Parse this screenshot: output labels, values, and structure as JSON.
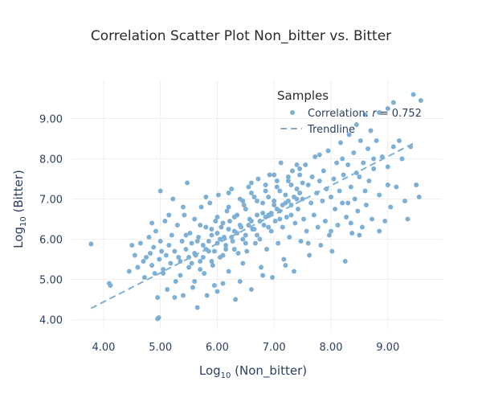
{
  "chart_data": {
    "type": "scatter",
    "title": "Correlation Scatter Plot Non_bitter vs. Bitter",
    "xlabel": "Log10 (Non_bitter)",
    "ylabel": "Log10 (Bitter)",
    "xlabel_parts": {
      "pre": "Log",
      "sub": "10",
      "post": " (Non_bitter)"
    },
    "ylabel_parts": {
      "pre": "Log",
      "sub": "10",
      "post": " (Bitter)"
    },
    "xlim": [
      3.45,
      9.95
    ],
    "ylim": [
      3.75,
      9.95
    ],
    "x_ticks": [
      4,
      5,
      6,
      7,
      8,
      9
    ],
    "y_ticks": [
      4,
      5,
      6,
      7,
      8,
      9
    ],
    "x_tick_labels": [
      "4.00",
      "5.00",
      "6.00",
      "7.00",
      "8.00",
      "9.00"
    ],
    "y_tick_labels": [
      "4.00",
      "5.00",
      "6.00",
      "7.00",
      "8.00",
      "9.00"
    ],
    "grid": true,
    "legend": {
      "title": "Samples",
      "placement": "top-right",
      "scatter_label": "Correlation: r = 0.752",
      "scatter_label_pre": "Correlation: ",
      "scatter_label_var": "r",
      "scatter_label_post": " = 0.752",
      "trend_label": "Trendline"
    },
    "colors": {
      "points": "#7eb0d5",
      "trendline": "#7eb0d5"
    },
    "trendline": {
      "x": [
        3.78,
        9.5
      ],
      "y": [
        4.28,
        8.42
      ]
    },
    "series": [
      {
        "name": "Correlation: r = 0.752",
        "points": [
          [
            3.78,
            5.88
          ],
          [
            4.1,
            4.9
          ],
          [
            4.12,
            4.85
          ],
          [
            4.45,
            5.2
          ],
          [
            4.5,
            5.85
          ],
          [
            4.55,
            5.6
          ],
          [
            4.6,
            5.3
          ],
          [
            4.65,
            5.9
          ],
          [
            4.7,
            5.45
          ],
          [
            4.72,
            5.05
          ],
          [
            4.8,
            6.05
          ],
          [
            4.82,
            5.65
          ],
          [
            4.85,
            5.35
          ],
          [
            4.88,
            5.8
          ],
          [
            4.9,
            5.15
          ],
          [
            4.92,
            6.2
          ],
          [
            4.95,
            4.55
          ],
          [
            4.95,
            4.02
          ],
          [
            4.97,
            4.05
          ],
          [
            4.98,
            5.5
          ],
          [
            5.0,
            7.2
          ],
          [
            5.0,
            5.95
          ],
          [
            5.02,
            5.7
          ],
          [
            5.05,
            5.25
          ],
          [
            5.08,
            6.45
          ],
          [
            5.1,
            5.6
          ],
          [
            5.12,
            4.75
          ],
          [
            5.15,
            5.85
          ],
          [
            5.18,
            5.4
          ],
          [
            5.2,
            6.1
          ],
          [
            5.22,
            7.0
          ],
          [
            5.25,
            5.7
          ],
          [
            5.27,
            4.95
          ],
          [
            5.3,
            6.35
          ],
          [
            5.32,
            5.55
          ],
          [
            5.35,
            5.1
          ],
          [
            5.38,
            5.95
          ],
          [
            5.4,
            4.6
          ],
          [
            5.42,
            6.6
          ],
          [
            5.45,
            5.75
          ],
          [
            5.47,
            7.4
          ],
          [
            5.5,
            5.3
          ],
          [
            5.52,
            6.15
          ],
          [
            5.55,
            5.9
          ],
          [
            5.57,
            4.8
          ],
          [
            5.6,
            6.5
          ],
          [
            5.62,
            5.6
          ],
          [
            5.65,
            4.3
          ],
          [
            5.67,
            6.05
          ],
          [
            5.7,
            5.45
          ],
          [
            5.72,
            6.8
          ],
          [
            5.75,
            5.85
          ],
          [
            5.77,
            5.15
          ],
          [
            5.8,
            6.3
          ],
          [
            5.82,
            4.6
          ],
          [
            5.85,
            5.7
          ],
          [
            5.87,
            6.9
          ],
          [
            5.9,
            6.1
          ],
          [
            5.92,
            5.35
          ],
          [
            5.95,
            4.85
          ],
          [
            5.97,
            6.45
          ],
          [
            6.0,
            5.9
          ],
          [
            6.02,
            7.1
          ],
          [
            6.05,
            5.55
          ],
          [
            6.07,
            6.3
          ],
          [
            6.1,
            4.9
          ],
          [
            6.12,
            6.05
          ],
          [
            6.15,
            5.75
          ],
          [
            6.17,
            6.7
          ],
          [
            6.2,
            5.2
          ],
          [
            6.22,
            6.45
          ],
          [
            6.25,
            7.25
          ],
          [
            6.27,
            5.95
          ],
          [
            6.3,
            6.2
          ],
          [
            6.32,
            4.5
          ],
          [
            6.35,
            6.6
          ],
          [
            6.37,
            5.65
          ],
          [
            6.4,
            7.0
          ],
          [
            6.42,
            6.3
          ],
          [
            6.45,
            5.4
          ],
          [
            6.47,
            6.85
          ],
          [
            6.5,
            6.1
          ],
          [
            6.52,
            5.7
          ],
          [
            6.55,
            7.3
          ],
          [
            6.57,
            6.5
          ],
          [
            6.6,
            4.75
          ],
          [
            6.62,
            6.25
          ],
          [
            6.65,
            7.05
          ],
          [
            6.67,
            5.9
          ],
          [
            6.7,
            6.6
          ],
          [
            6.72,
            7.5
          ],
          [
            6.75,
            6.0
          ],
          [
            6.77,
            5.3
          ],
          [
            6.8,
            6.9
          ],
          [
            6.82,
            6.35
          ],
          [
            6.85,
            7.2
          ],
          [
            6.87,
            5.75
          ],
          [
            6.9,
            6.6
          ],
          [
            6.92,
            7.6
          ],
          [
            6.95,
            6.2
          ],
          [
            6.97,
            5.05
          ],
          [
            7.0,
            6.95
          ],
          [
            7.02,
            6.45
          ],
          [
            7.05,
            7.3
          ],
          [
            7.07,
            5.9
          ],
          [
            7.1,
            6.7
          ],
          [
            7.12,
            7.9
          ],
          [
            7.15,
            6.3
          ],
          [
            7.17,
            5.5
          ],
          [
            7.2,
            7.1
          ],
          [
            7.22,
            6.55
          ],
          [
            7.25,
            7.45
          ],
          [
            7.27,
            6.05
          ],
          [
            7.3,
            6.85
          ],
          [
            7.32,
            7.7
          ],
          [
            7.35,
            5.2
          ],
          [
            7.37,
            6.4
          ],
          [
            7.4,
            7.25
          ],
          [
            7.42,
            6.75
          ],
          [
            7.45,
            7.6
          ],
          [
            7.47,
            5.95
          ],
          [
            7.5,
            7.0
          ],
          [
            7.52,
            6.5
          ],
          [
            7.55,
            7.85
          ],
          [
            7.57,
            6.2
          ],
          [
            7.6,
            7.35
          ],
          [
            7.62,
            5.6
          ],
          [
            7.65,
            6.9
          ],
          [
            7.67,
            7.55
          ],
          [
            7.7,
            6.6
          ],
          [
            7.72,
            8.05
          ],
          [
            7.75,
            7.15
          ],
          [
            7.77,
            6.3
          ],
          [
            7.8,
            7.45
          ],
          [
            7.82,
            5.85
          ],
          [
            7.85,
            6.95
          ],
          [
            7.87,
            7.7
          ],
          [
            7.9,
            6.45
          ],
          [
            7.92,
            7.25
          ],
          [
            7.95,
            8.2
          ],
          [
            7.97,
            6.1
          ],
          [
            8.0,
            7.05
          ],
          [
            8.02,
            5.7
          ],
          [
            8.05,
            7.5
          ],
          [
            8.07,
            6.75
          ],
          [
            8.1,
            7.9
          ],
          [
            8.12,
            6.35
          ],
          [
            8.15,
            7.2
          ],
          [
            8.17,
            8.4
          ],
          [
            8.2,
            6.9
          ],
          [
            8.22,
            7.6
          ],
          [
            8.25,
            5.45
          ],
          [
            8.27,
            6.55
          ],
          [
            8.3,
            7.85
          ],
          [
            8.32,
            8.6
          ],
          [
            8.35,
            7.3
          ],
          [
            8.37,
            6.15
          ],
          [
            8.4,
            8.15
          ],
          [
            8.42,
            7.0
          ],
          [
            8.45,
            8.85
          ],
          [
            8.47,
            6.7
          ],
          [
            8.5,
            7.55
          ],
          [
            8.52,
            8.45
          ],
          [
            8.55,
            6.3
          ],
          [
            8.57,
            7.9
          ],
          [
            8.6,
            9.1
          ],
          [
            8.62,
            6.85
          ],
          [
            8.65,
            8.25
          ],
          [
            8.67,
            7.45
          ],
          [
            8.7,
            8.7
          ],
          [
            8.72,
            6.5
          ],
          [
            8.75,
            7.75
          ],
          [
            8.8,
            8.45
          ],
          [
            8.85,
            7.1
          ],
          [
            8.9,
            8.05
          ],
          [
            8.95,
            6.45
          ],
          [
            9.0,
            7.35
          ],
          [
            9.05,
            6.8
          ],
          [
            9.1,
            8.3
          ],
          [
            9.15,
            7.3
          ],
          [
            9.2,
            8.45
          ],
          [
            9.3,
            6.95
          ],
          [
            9.35,
            6.5
          ],
          [
            9.45,
            9.6
          ],
          [
            9.5,
            7.35
          ],
          [
            9.55,
            7.05
          ],
          [
            9.58,
            9.45
          ],
          [
            9.0,
            9.25
          ],
          [
            9.1,
            9.4
          ],
          [
            8.85,
            9.15
          ],
          [
            5.35,
            5.45
          ],
          [
            5.55,
            5.4
          ],
          [
            5.75,
            5.55
          ],
          [
            5.85,
            5.95
          ],
          [
            5.95,
            5.7
          ],
          [
            6.05,
            6.0
          ],
          [
            6.15,
            5.85
          ],
          [
            6.25,
            6.05
          ],
          [
            6.35,
            6.15
          ],
          [
            6.45,
            6.0
          ],
          [
            6.55,
            6.35
          ],
          [
            6.65,
            6.25
          ],
          [
            6.75,
            6.45
          ],
          [
            6.85,
            6.55
          ],
          [
            6.95,
            6.65
          ],
          [
            7.05,
            6.75
          ],
          [
            7.15,
            6.85
          ],
          [
            7.25,
            6.95
          ],
          [
            7.35,
            7.05
          ],
          [
            7.45,
            7.15
          ],
          [
            5.6,
            5.65
          ],
          [
            5.8,
            5.75
          ],
          [
            6.0,
            6.15
          ],
          [
            6.2,
            6.25
          ],
          [
            6.4,
            6.35
          ],
          [
            6.6,
            6.45
          ],
          [
            6.8,
            6.65
          ],
          [
            7.0,
            6.85
          ],
          [
            7.2,
            6.9
          ],
          [
            7.4,
            7.0
          ],
          [
            5.65,
            5.95
          ],
          [
            5.9,
            6.25
          ],
          [
            6.1,
            6.4
          ],
          [
            6.3,
            6.55
          ],
          [
            6.5,
            6.75
          ],
          [
            6.7,
            6.95
          ],
          [
            6.9,
            7.05
          ],
          [
            7.1,
            7.2
          ],
          [
            7.3,
            7.35
          ],
          [
            7.5,
            7.4
          ],
          [
            5.5,
            5.55
          ],
          [
            5.7,
            5.25
          ],
          [
            5.9,
            5.45
          ],
          [
            6.1,
            5.6
          ],
          [
            6.3,
            5.75
          ],
          [
            6.5,
            5.9
          ],
          [
            6.7,
            6.1
          ],
          [
            6.9,
            6.3
          ],
          [
            7.1,
            6.5
          ],
          [
            7.3,
            6.6
          ],
          [
            5.45,
            6.1
          ],
          [
            5.7,
            6.35
          ],
          [
            6.0,
            6.55
          ],
          [
            6.2,
            6.8
          ],
          [
            6.45,
            6.95
          ],
          [
            6.6,
            7.15
          ],
          [
            6.85,
            7.35
          ],
          [
            7.05,
            7.45
          ],
          [
            7.25,
            7.55
          ],
          [
            7.45,
            7.75
          ],
          [
            4.75,
            5.55
          ],
          [
            4.85,
            6.4
          ],
          [
            5.05,
            5.15
          ],
          [
            5.15,
            6.6
          ],
          [
            5.25,
            4.55
          ],
          [
            5.4,
            6.8
          ],
          [
            5.6,
            4.95
          ],
          [
            5.8,
            7.05
          ],
          [
            6.0,
            4.7
          ],
          [
            6.2,
            7.15
          ],
          [
            6.4,
            4.95
          ],
          [
            6.6,
            7.4
          ],
          [
            6.8,
            5.1
          ],
          [
            7.0,
            7.6
          ],
          [
            7.2,
            5.35
          ],
          [
            7.4,
            7.85
          ],
          [
            7.6,
            5.9
          ],
          [
            7.8,
            8.1
          ],
          [
            8.0,
            6.2
          ],
          [
            8.2,
            8.0
          ],
          [
            8.35,
            6.4
          ],
          [
            8.5,
            6.1
          ],
          [
            8.6,
            7.2
          ],
          [
            8.75,
            8.0
          ],
          [
            8.85,
            6.2
          ],
          [
            9.0,
            7.8
          ],
          [
            9.25,
            8.0
          ],
          [
            9.4,
            8.3
          ],
          [
            8.3,
            6.9
          ],
          [
            8.45,
            7.65
          ]
        ]
      }
    ]
  }
}
